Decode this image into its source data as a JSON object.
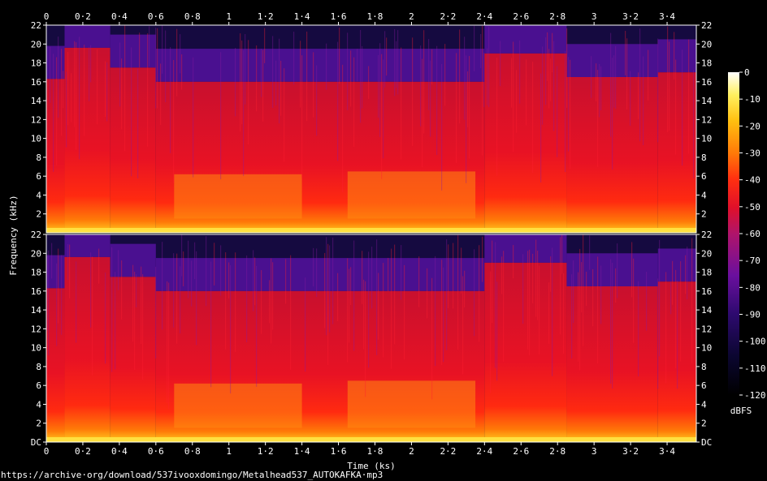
{
  "footer_url": "https://archive·org/download/537ivooxdomingo/Metalhead537_AUTOKAFKA·mp3",
  "chart_data": {
    "type": "heatmap",
    "title": "",
    "xlabel": "Time (ks)",
    "ylabel": "Frequency (kHz)",
    "xlim": [
      0,
      3.56
    ],
    "ylim": [
      0,
      22
    ],
    "x_ticks": [
      "0",
      "0·2",
      "0·4",
      "0·6",
      "0·8",
      "1",
      "1·2",
      "1·4",
      "1·6",
      "1·8",
      "2",
      "2·2",
      "2·4",
      "2·6",
      "2·8",
      "3",
      "3·2",
      "3·4"
    ],
    "x_tick_values": [
      0,
      0.2,
      0.4,
      0.6,
      0.8,
      1,
      1.2,
      1.4,
      1.6,
      1.8,
      2,
      2.2,
      2.4,
      2.6,
      2.8,
      3,
      3.2,
      3.4
    ],
    "y_ticks_top": [
      "22",
      "20",
      "18",
      "16",
      "14",
      "12",
      "10",
      "8",
      "6",
      "4",
      "2"
    ],
    "y_ticks_bottom": [
      "22",
      "20",
      "18",
      "16",
      "14",
      "12",
      "10",
      "8",
      "6",
      "4",
      "2",
      "DC"
    ],
    "y_tick_values_top": [
      22,
      20,
      18,
      16,
      14,
      12,
      10,
      8,
      6,
      4,
      2
    ],
    "y_tick_values_bottom": [
      22,
      20,
      18,
      16,
      14,
      12,
      10,
      8,
      6,
      4,
      2,
      0
    ],
    "channels": [
      "left",
      "right"
    ],
    "colorbar": {
      "label": "dBFS",
      "ticks": [
        "0",
        "-10",
        "-20",
        "-30",
        "-40",
        "-50",
        "-60",
        "-70",
        "-80",
        "-90",
        "-100",
        "-110",
        "-120"
      ],
      "range": [
        -120,
        0
      ]
    },
    "cutoff_segments_khz": [
      {
        "t_start": 0,
        "t_end": 0.1,
        "cutoff": 16.3
      },
      {
        "t_start": 0.1,
        "t_end": 0.35,
        "cutoff": 19.6
      },
      {
        "t_start": 0.35,
        "t_end": 0.6,
        "cutoff": 17.5
      },
      {
        "t_start": 0.6,
        "t_end": 2.4,
        "cutoff": 16.0
      },
      {
        "t_start": 2.4,
        "t_end": 2.85,
        "cutoff": 19.0
      },
      {
        "t_start": 2.85,
        "t_end": 3.35,
        "cutoff": 16.5
      },
      {
        "t_start": 3.35,
        "t_end": 3.56,
        "cutoff": 17.0
      }
    ],
    "loud_bands_khz": [
      {
        "t_start": 0.7,
        "t_end": 1.4,
        "top": 6.2
      },
      {
        "t_start": 1.65,
        "t_end": 2.35,
        "top": 6.5
      }
    ]
  }
}
